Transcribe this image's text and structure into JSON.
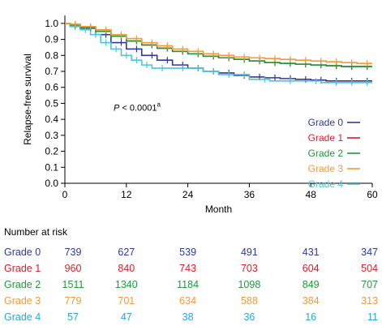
{
  "chart_data": {
    "type": "line",
    "ylabel": "Relapse-free survival",
    "xlabel": "Month",
    "x_ticks": [
      "0",
      "12",
      "24",
      "36",
      "48",
      "60"
    ],
    "y_ticks": [
      "0.0",
      "0.1",
      "0.2",
      "0.3",
      "0.4",
      "0.5",
      "0.6",
      "0.7",
      "0.8",
      "0.9",
      "1.0"
    ],
    "xlim": [
      0,
      60
    ],
    "ylim": [
      0,
      1.05
    ],
    "grid": false,
    "legend_position": "right",
    "annotation": {
      "p_label": "P",
      "p_text": " < 0.0001",
      "p_sup": "a",
      "x": 9.5,
      "y": 0.455
    },
    "series": [
      {
        "name": "Grade 0",
        "color": "#2e3a9a",
        "x": [
          0,
          1,
          3,
          6,
          9,
          12,
          15,
          18,
          21,
          24,
          27,
          30,
          33,
          36,
          39,
          42,
          45,
          48,
          51,
          54,
          57,
          60
        ],
        "y": [
          1.0,
          0.99,
          0.97,
          0.93,
          0.88,
          0.84,
          0.8,
          0.77,
          0.74,
          0.72,
          0.7,
          0.69,
          0.675,
          0.665,
          0.66,
          0.655,
          0.65,
          0.645,
          0.64,
          0.64,
          0.64,
          0.64
        ]
      },
      {
        "name": "Grade 1",
        "color": "#d7202a",
        "x": [
          0,
          1,
          3,
          6,
          9,
          12,
          15,
          18,
          21,
          24,
          27,
          30,
          33,
          36,
          39,
          42,
          45,
          48,
          51,
          54,
          57,
          60
        ],
        "y": [
          1.0,
          0.99,
          0.975,
          0.95,
          0.92,
          0.89,
          0.865,
          0.845,
          0.825,
          0.81,
          0.795,
          0.785,
          0.775,
          0.765,
          0.755,
          0.75,
          0.745,
          0.74,
          0.735,
          0.73,
          0.73,
          0.73
        ]
      },
      {
        "name": "Grade 2",
        "color": "#1f9a3a",
        "x": [
          0,
          1,
          3,
          6,
          9,
          12,
          15,
          18,
          21,
          24,
          27,
          30,
          33,
          36,
          39,
          42,
          45,
          48,
          51,
          54,
          57,
          60
        ],
        "y": [
          1.0,
          0.99,
          0.975,
          0.95,
          0.92,
          0.89,
          0.865,
          0.845,
          0.825,
          0.81,
          0.795,
          0.785,
          0.775,
          0.765,
          0.755,
          0.75,
          0.745,
          0.74,
          0.735,
          0.73,
          0.73,
          0.73
        ]
      },
      {
        "name": "Grade 3",
        "color": "#f39a3a",
        "x": [
          0,
          1,
          3,
          6,
          9,
          12,
          15,
          18,
          21,
          24,
          27,
          30,
          33,
          36,
          39,
          42,
          45,
          48,
          51,
          54,
          57,
          60
        ],
        "y": [
          1.0,
          0.995,
          0.98,
          0.96,
          0.93,
          0.905,
          0.88,
          0.86,
          0.84,
          0.825,
          0.81,
          0.8,
          0.79,
          0.785,
          0.78,
          0.775,
          0.77,
          0.765,
          0.76,
          0.755,
          0.75,
          0.75
        ]
      },
      {
        "name": "Grade 4",
        "color": "#4ec4dc",
        "x": [
          0,
          1,
          3,
          5,
          7,
          9,
          11,
          13,
          15,
          17,
          20,
          24,
          27,
          30,
          33,
          36,
          40,
          45,
          50,
          54,
          57,
          60
        ],
        "y": [
          1.0,
          0.98,
          0.96,
          0.93,
          0.88,
          0.84,
          0.8,
          0.77,
          0.74,
          0.72,
          0.72,
          0.72,
          0.7,
          0.68,
          0.68,
          0.65,
          0.64,
          0.64,
          0.63,
          0.63,
          0.63,
          0.63
        ]
      }
    ]
  },
  "risk_table": {
    "title": "Number at risk",
    "rows": [
      {
        "label": "Grade 0",
        "color": "#2e3a9a",
        "values": [
          "739",
          "627",
          "539",
          "491",
          "431",
          "347"
        ]
      },
      {
        "label": "Grade 1",
        "color": "#d7202a",
        "values": [
          "960",
          "840",
          "743",
          "703",
          "604",
          "504"
        ]
      },
      {
        "label": "Grade 2",
        "color": "#1f9a3a",
        "values": [
          "1511",
          "1340",
          "1184",
          "1098",
          "849",
          "707"
        ]
      },
      {
        "label": "Grade 3",
        "color": "#f39a3a",
        "values": [
          "779",
          "701",
          "634",
          "588",
          "384",
          "313"
        ]
      },
      {
        "label": "Grade 4",
        "color": "#29a8d6",
        "values": [
          "57",
          "47",
          "38",
          "36",
          "16",
          "11"
        ]
      }
    ]
  }
}
